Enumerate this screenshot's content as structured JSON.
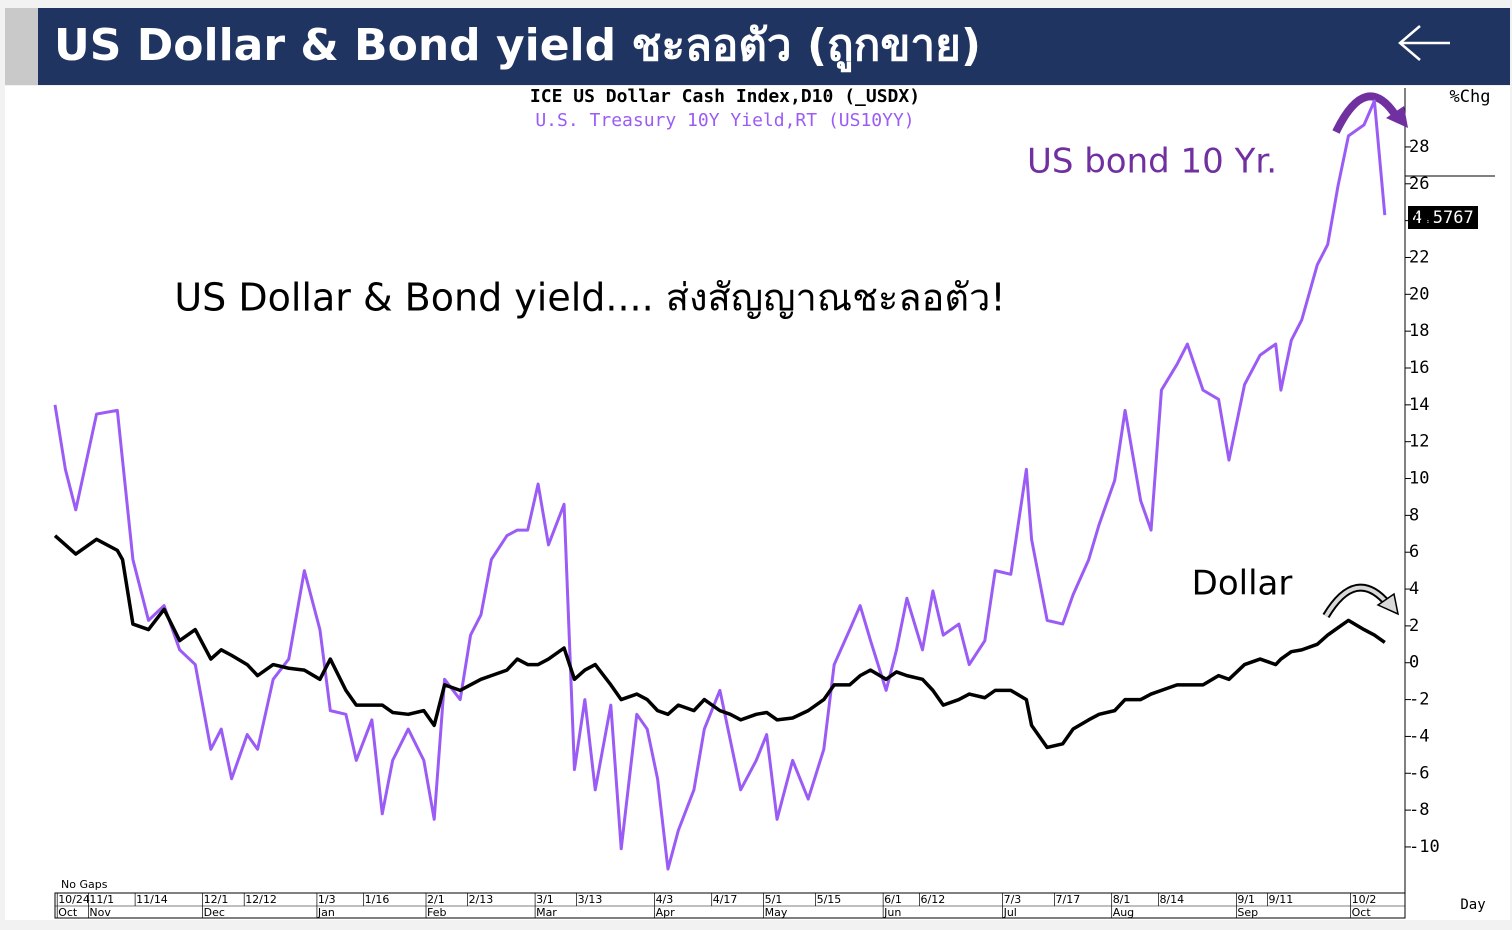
{
  "header": {
    "title": "US Dollar & Bond yield ชะลอตัว (ถูกขาย)"
  },
  "chart_data": {
    "type": "line",
    "legend_titles": [
      "ICE US Dollar Cash Index,D10 (_USDX)",
      "U.S. Treasury 10Y Yield,RT (US10YY)"
    ],
    "y_axis_label": "%Chg",
    "x_axis_label": "Day",
    "note": "No Gaps",
    "last_value": 4.5767,
    "annotations": [
      "US Dollar & Bond yield.... ส่งสัญญาณชะลอตัว!",
      "US bond 10 Yr.",
      "Dollar"
    ],
    "xlim": [
      0,
      257
    ],
    "ylim": [
      -12.5,
      31.2
    ],
    "yticks": [
      -10,
      -8,
      -6,
      -4,
      -2,
      0,
      2,
      4,
      6,
      8,
      10,
      12,
      14,
      16,
      18,
      20,
      22,
      24,
      26,
      28
    ],
    "xticks": [
      {
        "value": 1,
        "label": "10/24"
      },
      {
        "value": 7,
        "label": "11/1"
      },
      {
        "value": 16,
        "label": "11/14"
      },
      {
        "value": 29,
        "label": "12/1"
      },
      {
        "value": 37,
        "label": "12/12"
      },
      {
        "value": 51,
        "label": "1/3"
      },
      {
        "value": 60,
        "label": "1/16"
      },
      {
        "value": 72,
        "label": "2/1"
      },
      {
        "value": 80,
        "label": "2/13"
      },
      {
        "value": 93,
        "label": "3/1"
      },
      {
        "value": 101,
        "label": "3/13"
      },
      {
        "value": 116,
        "label": "4/3"
      },
      {
        "value": 127,
        "label": "4/17"
      },
      {
        "value": 137,
        "label": "5/1"
      },
      {
        "value": 147,
        "label": "5/15"
      },
      {
        "value": 160,
        "label": "6/1"
      },
      {
        "value": 167,
        "label": "6/12"
      },
      {
        "value": 183,
        "label": "7/3"
      },
      {
        "value": 193,
        "label": "7/17"
      },
      {
        "value": 204,
        "label": "8/1"
      },
      {
        "value": 213,
        "label": "8/14"
      },
      {
        "value": 228,
        "label": "9/1"
      },
      {
        "value": 234,
        "label": "9/11"
      },
      {
        "value": 250,
        "label": "10/2"
      }
    ],
    "month_ticks": [
      {
        "value": 1,
        "label": "Oct"
      },
      {
        "value": 7,
        "label": "Nov"
      },
      {
        "value": 29,
        "label": "Dec"
      },
      {
        "value": 51,
        "label": "Jan"
      },
      {
        "value": 72,
        "label": "Feb"
      },
      {
        "value": 93,
        "label": "Mar"
      },
      {
        "value": 116,
        "label": "Apr"
      },
      {
        "value": 137,
        "label": "May"
      },
      {
        "value": 160,
        "label": "Jun"
      },
      {
        "value": 183,
        "label": "Jul"
      },
      {
        "value": 204,
        "label": "Aug"
      },
      {
        "value": 228,
        "label": "Sep"
      },
      {
        "value": 250,
        "label": "Oct"
      }
    ],
    "x": [
      0,
      2,
      4,
      8,
      12,
      13,
      15,
      18,
      21,
      24,
      27,
      30,
      32,
      34,
      37,
      39,
      42,
      45,
      48,
      51,
      53,
      56,
      58,
      61,
      63,
      65,
      68,
      71,
      73,
      75,
      78,
      80,
      82,
      84,
      87,
      89,
      91,
      93,
      95,
      98,
      100,
      102,
      104,
      107,
      109,
      112,
      114,
      116,
      118,
      120,
      123,
      125,
      128,
      130,
      132,
      135,
      137,
      139,
      142,
      145,
      148,
      150,
      153,
      155,
      157,
      160,
      162,
      164,
      167,
      169,
      171,
      174,
      176,
      179,
      181,
      184,
      187,
      188,
      191,
      194,
      196,
      199,
      201,
      204,
      206,
      209,
      211,
      213,
      216,
      218,
      221,
      224,
      226,
      229,
      232,
      235,
      236,
      238,
      240,
      243,
      245,
      247,
      249,
      252,
      254,
      256
    ],
    "series": [
      {
        "color": "#9b5cf6",
        "width": 3,
        "values": [
          14.0,
          10.5,
          8.3,
          13.5,
          13.7,
          11.0,
          5.6,
          2.3,
          3.1,
          0.7,
          -0.1,
          -4.7,
          -3.6,
          -6.3,
          -3.9,
          -4.7,
          -0.9,
          0.2,
          5.0,
          1.8,
          -2.6,
          -2.8,
          -5.3,
          -3.1,
          -8.2,
          -5.3,
          -3.6,
          -5.3,
          -8.5,
          -0.9,
          -2.0,
          1.5,
          2.6,
          5.6,
          6.9,
          7.2,
          7.2,
          9.7,
          6.4,
          8.6,
          -5.8,
          -2.0,
          -6.9,
          -2.3,
          -10.1,
          -2.8,
          -3.6,
          -6.3,
          -11.2,
          -9.1,
          -6.9,
          -3.6,
          -1.5,
          -4.2,
          -6.9,
          -5.3,
          -3.9,
          -8.5,
          -5.3,
          -7.4,
          -4.7,
          -0.1,
          1.8,
          3.1,
          1.2,
          -1.5,
          0.7,
          3.5,
          0.7,
          3.9,
          1.5,
          2.1,
          -0.1,
          1.2,
          5.0,
          4.8,
          10.5,
          6.7,
          2.3,
          2.1,
          3.7,
          5.6,
          7.5,
          9.9,
          13.7,
          8.8,
          7.2,
          14.8,
          16.2,
          17.3,
          14.8,
          14.3,
          11.0,
          15.1,
          16.7,
          17.3,
          14.8,
          17.5,
          18.6,
          21.6,
          22.7,
          25.9,
          28.6,
          29.2,
          30.5,
          24.3
        ]
      },
      {
        "color": "#000000",
        "width": 3.5,
        "values": [
          6.9,
          6.4,
          5.9,
          6.7,
          6.1,
          5.6,
          2.1,
          1.8,
          2.9,
          1.2,
          1.8,
          0.2,
          0.7,
          0.4,
          -0.1,
          -0.7,
          -0.1,
          -0.3,
          -0.4,
          -0.9,
          0.2,
          -1.5,
          -2.3,
          -2.3,
          -2.3,
          -2.7,
          -2.8,
          -2.6,
          -3.4,
          -1.2,
          -1.5,
          -1.2,
          -0.9,
          -0.7,
          -0.4,
          0.2,
          -0.1,
          -0.1,
          0.2,
          0.8,
          -0.9,
          -0.4,
          -0.1,
          -1.2,
          -2.0,
          -1.7,
          -2.0,
          -2.6,
          -2.8,
          -2.3,
          -2.6,
          -2.0,
          -2.6,
          -2.8,
          -3.1,
          -2.8,
          -2.7,
          -3.1,
          -3.0,
          -2.6,
          -2.0,
          -1.2,
          -1.2,
          -0.7,
          -0.4,
          -0.9,
          -0.5,
          -0.7,
          -0.9,
          -1.5,
          -2.3,
          -2.0,
          -1.7,
          -1.9,
          -1.5,
          -1.5,
          -2.0,
          -3.4,
          -4.6,
          -4.4,
          -3.6,
          -3.1,
          -2.8,
          -2.6,
          -2.0,
          -2.0,
          -1.7,
          -1.5,
          -1.2,
          -1.2,
          -1.2,
          -0.7,
          -0.9,
          -0.1,
          0.2,
          -0.1,
          0.2,
          0.6,
          0.7,
          1.0,
          1.5,
          1.9,
          2.3,
          1.8,
          1.5,
          1.1
        ]
      }
    ]
  }
}
